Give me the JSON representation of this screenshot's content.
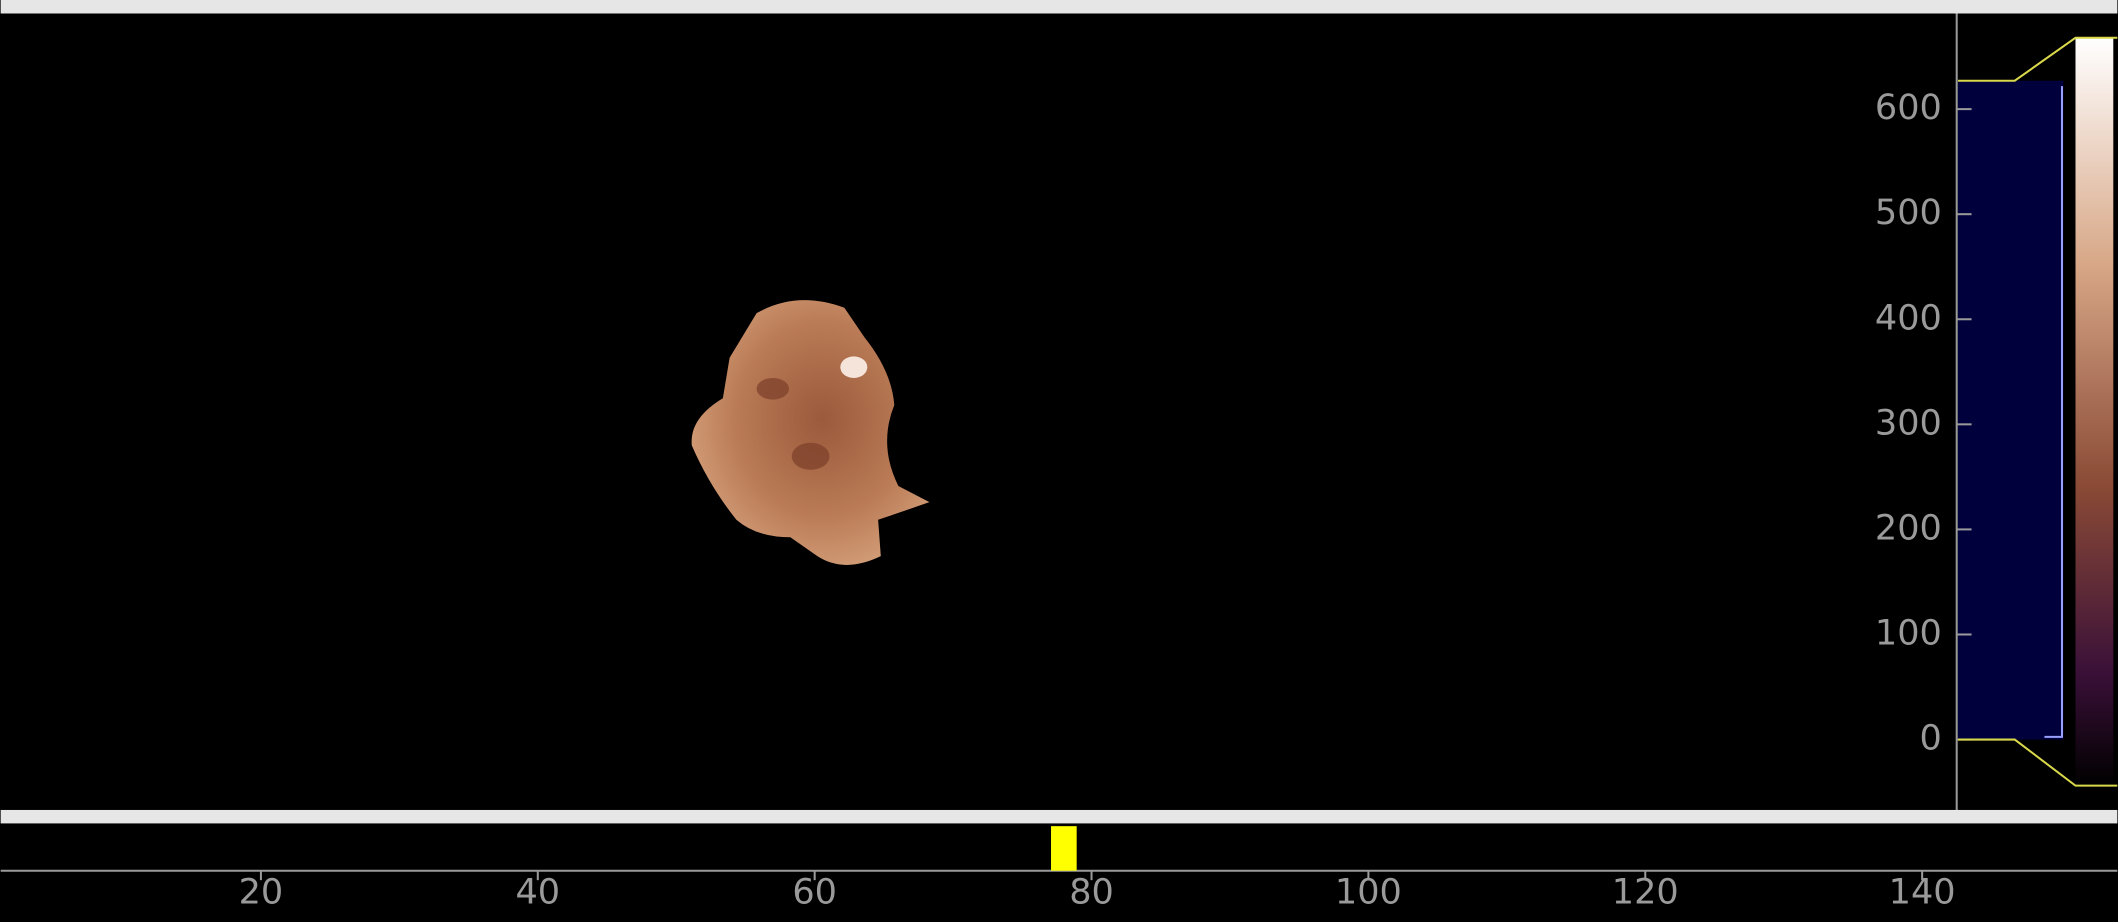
{
  "histogram": {
    "range": [
      -67,
      691
    ],
    "ticks": [
      0,
      100,
      200,
      300,
      400,
      500,
      600
    ],
    "levels": [
      0,
      627
    ]
  },
  "timeline": {
    "range": [
      1.2,
      154.1
    ],
    "ticks": [
      20,
      40,
      60,
      80,
      100,
      120,
      140
    ],
    "current": 78
  }
}
